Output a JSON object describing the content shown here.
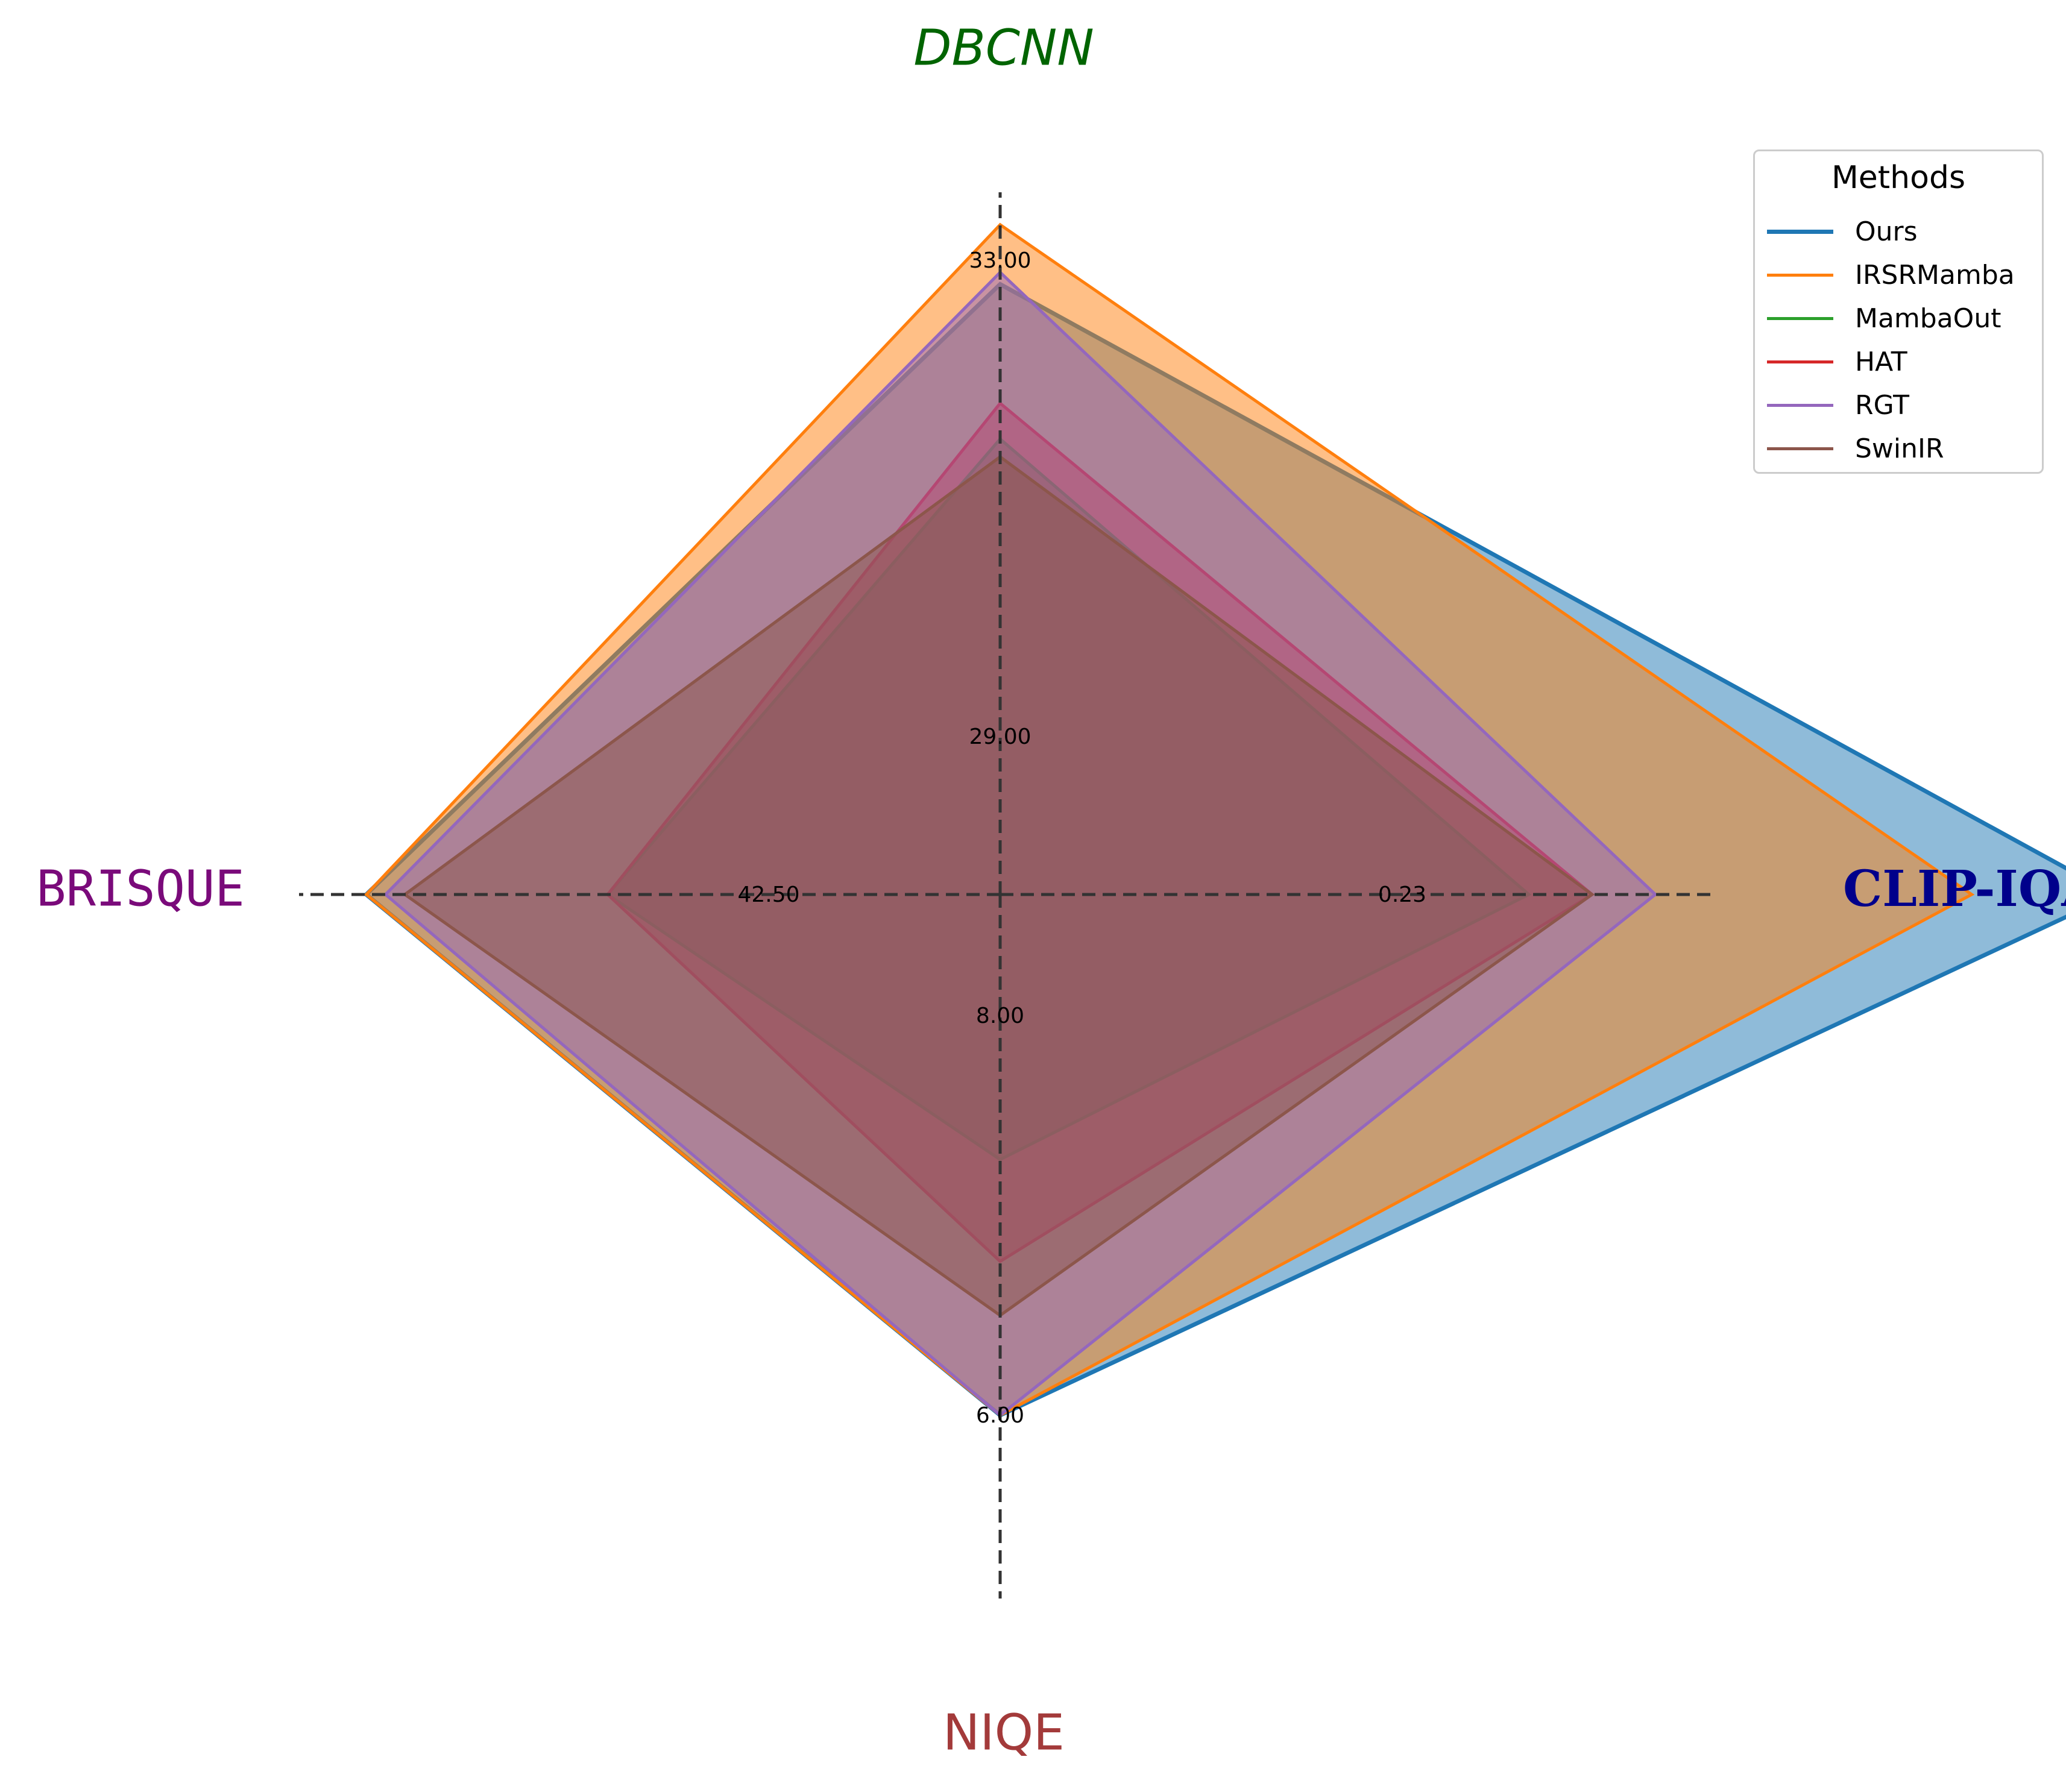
{
  "chart_data": {
    "type": "radar",
    "axes": [
      {
        "name": "DBCNN",
        "tick_labels": [
          "29.00",
          "33.00"
        ],
        "tick_values": [
          29,
          33
        ]
      },
      {
        "name": "CLIP-IQA",
        "tick_labels": [
          "0.23"
        ],
        "tick_values": [
          0.23
        ]
      },
      {
        "name": "NIQE",
        "tick_labels": [
          "8.00",
          "6.00"
        ],
        "tick_values": [
          8,
          6
        ]
      },
      {
        "name": "BRISQUE",
        "tick_labels": [
          "42.50"
        ],
        "tick_values": [
          42.5
        ]
      }
    ],
    "legend_title": "Methods",
    "legend_position": "top-right",
    "series": [
      {
        "name": "Ours",
        "color": "#1f77b4",
        "values": {
          "DBCNN": 32.8,
          "CLIP-IQA": 0.455,
          "NIQE": 6.0,
          "BRISQUE": 30.0
        }
      },
      {
        "name": "IRSRMamba",
        "color": "#ff7f0e",
        "values": {
          "DBCNN": 33.3,
          "CLIP-IQA": 0.41,
          "NIQE": 6.0,
          "BRISQUE": 30.0
        }
      },
      {
        "name": "MambaOut",
        "color": "#2ca02c",
        "values": {
          "DBCNN": 31.5,
          "CLIP-IQA": 0.27,
          "NIQE": 7.28,
          "BRISQUE": 37.5
        }
      },
      {
        "name": "HAT",
        "color": "#d62728",
        "values": {
          "DBCNN": 31.8,
          "CLIP-IQA": 0.29,
          "NIQE": 6.77,
          "BRISQUE": 37.5
        }
      },
      {
        "name": "RGT",
        "color": "#9467bd",
        "values": {
          "DBCNN": 32.9,
          "CLIP-IQA": 0.31,
          "NIQE": 6.0,
          "BRISQUE": 30.6
        }
      },
      {
        "name": "SwinIR",
        "color": "#8c564b",
        "values": {
          "DBCNN": 31.35,
          "CLIP-IQA": 0.29,
          "NIQE": 6.5,
          "BRISQUE": 31.2
        }
      }
    ]
  }
}
